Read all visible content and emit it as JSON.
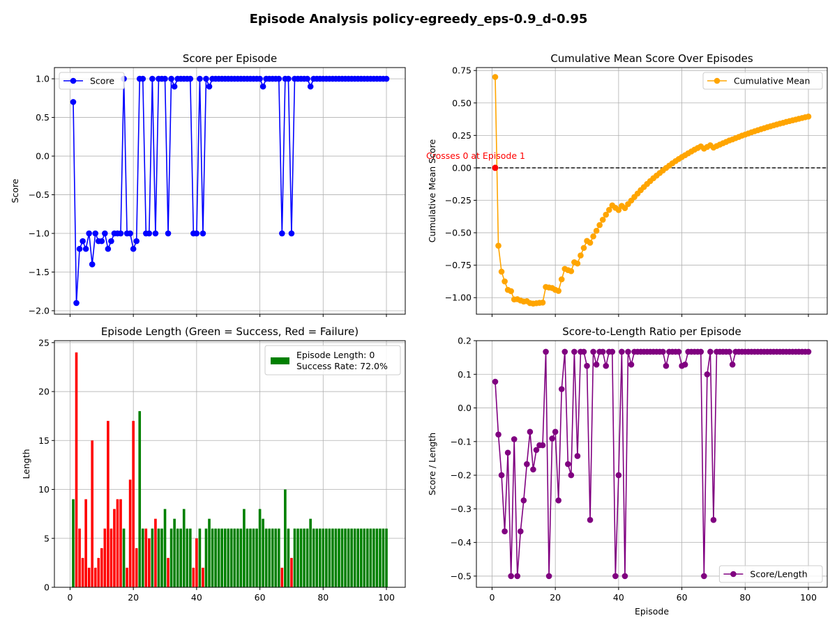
{
  "figure": {
    "title": "Episode Analysis policy-egreedy_eps-0.9_d-0.95"
  },
  "chart_data": [
    {
      "id": "score",
      "type": "line",
      "title": "Score per Episode",
      "xlabel": "",
      "ylabel": "Score",
      "xlim": [
        -4.95,
        105.95
      ],
      "ylim": [
        -2.045,
        1.145
      ],
      "xticks": [
        0,
        20,
        40,
        60,
        80,
        100
      ],
      "xticklabels": [
        "",
        "",
        "",
        "",
        "",
        ""
      ],
      "yticks": [
        -2.0,
        -1.5,
        -1.0,
        -0.5,
        0.0,
        0.5,
        1.0
      ],
      "yticklabels": [
        "−2.0",
        "−1.5",
        "−1.0",
        "−0.5",
        "0.0",
        "0.5",
        "1.0"
      ],
      "grid": true,
      "legend": {
        "position": "upper-left"
      },
      "series": [
        {
          "name": "Score",
          "color": "#0000ff",
          "marker": "circle",
          "x": [
            1,
            2,
            3,
            4,
            5,
            6,
            7,
            8,
            9,
            10,
            11,
            12,
            13,
            14,
            15,
            16,
            17,
            18,
            19,
            20,
            21,
            22,
            23,
            24,
            25,
            26,
            27,
            28,
            29,
            30,
            31,
            32,
            33,
            34,
            35,
            36,
            37,
            38,
            39,
            40,
            41,
            42,
            43,
            44,
            45,
            46,
            47,
            48,
            49,
            50,
            51,
            52,
            53,
            54,
            55,
            56,
            57,
            58,
            59,
            60,
            61,
            62,
            63,
            64,
            65,
            66,
            67,
            68,
            69,
            70,
            71,
            72,
            73,
            74,
            75,
            76,
            77,
            78,
            79,
            80,
            81,
            82,
            83,
            84,
            85,
            86,
            87,
            88,
            89,
            90,
            91,
            92,
            93,
            94,
            95,
            96,
            97,
            98,
            99,
            100
          ],
          "y": [
            0.7,
            -1.9,
            -1.2,
            -1.1,
            -1.2,
            -1.0,
            -1.4,
            -1.0,
            -1.1,
            -1.1,
            -1.0,
            -1.2,
            -1.1,
            -1.0,
            -1.0,
            -1.0,
            1.0,
            -1.0,
            -1.0,
            -1.2,
            -1.1,
            1.0,
            1.0,
            -1.0,
            -1.0,
            1.0,
            -1.0,
            1.0,
            1.0,
            1.0,
            -1.0,
            1.0,
            0.9,
            1.0,
            1.0,
            1.0,
            1.0,
            1.0,
            -1.0,
            -1.0,
            1.0,
            -1.0,
            1.0,
            0.9,
            1.0,
            1.0,
            1.0,
            1.0,
            1.0,
            1.0,
            1.0,
            1.0,
            1.0,
            1.0,
            1.0,
            1.0,
            1.0,
            1.0,
            1.0,
            1.0,
            0.9,
            1.0,
            1.0,
            1.0,
            1.0,
            1.0,
            -1.0,
            1.0,
            1.0,
            -1.0,
            1.0,
            1.0,
            1.0,
            1.0,
            1.0,
            0.9,
            1.0,
            1.0,
            1.0,
            1.0,
            1.0,
            1.0,
            1.0,
            1.0,
            1.0,
            1.0,
            1.0,
            1.0,
            1.0,
            1.0,
            1.0,
            1.0,
            1.0,
            1.0,
            1.0,
            1.0,
            1.0,
            1.0,
            1.0,
            1.0
          ]
        }
      ]
    },
    {
      "id": "cummean",
      "type": "line",
      "title": "Cumulative Mean Score Over Episodes",
      "xlabel": "",
      "ylabel": "Cumulative Mean Score",
      "xlim": [
        -4.95,
        105.95
      ],
      "ylim": [
        -1.1275,
        0.7725
      ],
      "xticks": [
        0,
        20,
        40,
        60,
        80,
        100
      ],
      "xticklabels": [
        "",
        "",
        "",
        "",
        "",
        ""
      ],
      "yticks": [
        -1.0,
        -0.75,
        -0.5,
        -0.25,
        0.0,
        0.25,
        0.5,
        0.75
      ],
      "yticklabels": [
        "−1.00",
        "−0.75",
        "−0.50",
        "−0.25",
        "0.00",
        "0.25",
        "0.50",
        "0.75"
      ],
      "grid": true,
      "legend": {
        "position": "upper-right"
      },
      "hline": {
        "y": 0,
        "color": "#000000",
        "style": "dashed"
      },
      "annotation": {
        "text": "Crosses 0 at Episode 1",
        "x": 1,
        "y": 0,
        "color": "#ff0000"
      },
      "series": [
        {
          "name": "Cumulative Mean",
          "color": "#ffa500",
          "marker": "circle",
          "x": [
            1,
            2,
            3,
            4,
            5,
            6,
            7,
            8,
            9,
            10,
            11,
            12,
            13,
            14,
            15,
            16,
            17,
            18,
            19,
            20,
            21,
            22,
            23,
            24,
            25,
            26,
            27,
            28,
            29,
            30,
            31,
            32,
            33,
            34,
            35,
            36,
            37,
            38,
            39,
            40,
            41,
            42,
            43,
            44,
            45,
            46,
            47,
            48,
            49,
            50,
            51,
            52,
            53,
            54,
            55,
            56,
            57,
            58,
            59,
            60,
            61,
            62,
            63,
            64,
            65,
            66,
            67,
            68,
            69,
            70,
            71,
            72,
            73,
            74,
            75,
            76,
            77,
            78,
            79,
            80,
            81,
            82,
            83,
            84,
            85,
            86,
            87,
            88,
            89,
            90,
            91,
            92,
            93,
            94,
            95,
            96,
            97,
            98,
            99,
            100
          ],
          "y": [
            0.7,
            -0.6,
            -0.8,
            -0.875,
            -0.94,
            -0.95,
            -1.014,
            -1.012,
            -1.022,
            -1.03,
            -1.027,
            -1.042,
            -1.046,
            -1.043,
            -1.04,
            -1.038,
            -0.918,
            -0.922,
            -0.926,
            -0.94,
            -0.948,
            -0.859,
            -0.778,
            -0.788,
            -0.796,
            -0.727,
            -0.737,
            -0.675,
            -0.617,
            -0.563,
            -0.577,
            -0.528,
            -0.485,
            -0.441,
            -0.4,
            -0.361,
            -0.324,
            -0.289,
            -0.308,
            -0.325,
            -0.293,
            -0.31,
            -0.279,
            -0.252,
            -0.224,
            -0.198,
            -0.172,
            -0.148,
            -0.124,
            -0.102,
            -0.08,
            -0.06,
            -0.04,
            -0.02,
            -0.001,
            0.017,
            0.035,
            0.052,
            0.068,
            0.083,
            0.097,
            0.112,
            0.126,
            0.14,
            0.153,
            0.165,
            0.148,
            0.161,
            0.174,
            0.156,
            0.168,
            0.179,
            0.19,
            0.2,
            0.211,
            0.219,
            0.229,
            0.238,
            0.248,
            0.256,
            0.265,
            0.274,
            0.282,
            0.29,
            0.298,
            0.305,
            0.313,
            0.32,
            0.327,
            0.334,
            0.341,
            0.347,
            0.354,
            0.36,
            0.366,
            0.372,
            0.378,
            0.384,
            0.39,
            0.395
          ]
        }
      ],
      "points": [
        {
          "x": 1,
          "y": 0,
          "color": "#ff0000"
        }
      ]
    },
    {
      "id": "length",
      "type": "bar",
      "title": "Episode Length (Green = Success, Red = Failure)",
      "xlabel": "",
      "ylabel": "Length",
      "xlim": [
        -4.95,
        105.95
      ],
      "ylim": [
        0,
        25.2
      ],
      "xticks": [
        0,
        20,
        40,
        60,
        80,
        100
      ],
      "xticklabels": [
        "0",
        "20",
        "40",
        "60",
        "80",
        "100"
      ],
      "yticks": [
        0,
        5,
        10,
        15,
        20,
        25
      ],
      "yticklabels": [
        "0",
        "5",
        "10",
        "15",
        "20",
        "25"
      ],
      "grid": true,
      "legend": {
        "position": "upper-right",
        "entries": [
          "Episode Length: 0",
          "Success Rate: 72.0%"
        ],
        "color": "#008000"
      },
      "success_color": "#008000",
      "failure_color": "#ff0000",
      "x": [
        1,
        2,
        3,
        4,
        5,
        6,
        7,
        8,
        9,
        10,
        11,
        12,
        13,
        14,
        15,
        16,
        17,
        18,
        19,
        20,
        21,
        22,
        23,
        24,
        25,
        26,
        27,
        28,
        29,
        30,
        31,
        32,
        33,
        34,
        35,
        36,
        37,
        38,
        39,
        40,
        41,
        42,
        43,
        44,
        45,
        46,
        47,
        48,
        49,
        50,
        51,
        52,
        53,
        54,
        55,
        56,
        57,
        58,
        59,
        60,
        61,
        62,
        63,
        64,
        65,
        66,
        67,
        68,
        69,
        70,
        71,
        72,
        73,
        74,
        75,
        76,
        77,
        78,
        79,
        80,
        81,
        82,
        83,
        84,
        85,
        86,
        87,
        88,
        89,
        90,
        91,
        92,
        93,
        94,
        95,
        96,
        97,
        98,
        99,
        100
      ],
      "values": [
        9,
        24,
        6,
        3,
        9,
        2,
        15,
        2,
        3,
        4,
        6,
        17,
        6,
        8,
        9,
        9,
        6,
        2,
        11,
        17,
        4,
        18,
        6,
        6,
        5,
        6,
        7,
        6,
        6,
        8,
        3,
        6,
        7,
        6,
        6,
        8,
        6,
        6,
        2,
        5,
        6,
        2,
        6,
        7,
        6,
        6,
        6,
        6,
        6,
        6,
        6,
        6,
        6,
        6,
        8,
        6,
        6,
        6,
        6,
        8,
        7,
        6,
        6,
        6,
        6,
        6,
        2,
        10,
        6,
        3,
        6,
        6,
        6,
        6,
        6,
        7,
        6,
        6,
        6,
        6,
        6,
        6,
        6,
        6,
        6,
        6,
        6,
        6,
        6,
        6,
        6,
        6,
        6,
        6,
        6,
        6,
        6,
        6,
        6,
        6
      ],
      "success": [
        1,
        0,
        0,
        0,
        0,
        0,
        0,
        0,
        0,
        0,
        0,
        0,
        0,
        0,
        0,
        0,
        1,
        0,
        0,
        0,
        0,
        1,
        1,
        0,
        0,
        1,
        0,
        1,
        1,
        1,
        0,
        1,
        1,
        1,
        1,
        1,
        1,
        1,
        0,
        0,
        1,
        0,
        1,
        1,
        1,
        1,
        1,
        1,
        1,
        1,
        1,
        1,
        1,
        1,
        1,
        1,
        1,
        1,
        1,
        1,
        1,
        1,
        1,
        1,
        1,
        1,
        0,
        1,
        1,
        0,
        1,
        1,
        1,
        1,
        1,
        1,
        1,
        1,
        1,
        1,
        1,
        1,
        1,
        1,
        1,
        1,
        1,
        1,
        1,
        1,
        1,
        1,
        1,
        1,
        1,
        1,
        1,
        1,
        1,
        1
      ]
    },
    {
      "id": "ratio",
      "type": "line",
      "title": "Score-to-Length Ratio per Episode",
      "xlabel": "Episode",
      "ylabel": "Score / Length",
      "xlim": [
        -4.95,
        105.95
      ],
      "ylim": [
        -0.5333,
        0.2
      ],
      "xticks": [
        0,
        20,
        40,
        60,
        80,
        100
      ],
      "xticklabels": [
        "0",
        "20",
        "40",
        "60",
        "80",
        "100"
      ],
      "yticks": [
        -0.5,
        -0.4,
        -0.3,
        -0.2,
        -0.1,
        0.0,
        0.1,
        0.2
      ],
      "yticklabels": [
        "−0.5",
        "−0.4",
        "−0.3",
        "−0.2",
        "−0.1",
        "0.0",
        "0.1",
        "0.2"
      ],
      "grid": true,
      "legend": {
        "position": "lower-right"
      },
      "series": [
        {
          "name": "Score/Length",
          "color": "#800080",
          "marker": "circle",
          "x": [
            1,
            2,
            3,
            4,
            5,
            6,
            7,
            8,
            9,
            10,
            11,
            12,
            13,
            14,
            15,
            16,
            17,
            18,
            19,
            20,
            21,
            22,
            23,
            24,
            25,
            26,
            27,
            28,
            29,
            30,
            31,
            32,
            33,
            34,
            35,
            36,
            37,
            38,
            39,
            40,
            41,
            42,
            43,
            44,
            45,
            46,
            47,
            48,
            49,
            50,
            51,
            52,
            53,
            54,
            55,
            56,
            57,
            58,
            59,
            60,
            61,
            62,
            63,
            64,
            65,
            66,
            67,
            68,
            69,
            70,
            71,
            72,
            73,
            74,
            75,
            76,
            77,
            78,
            79,
            80,
            81,
            82,
            83,
            84,
            85,
            86,
            87,
            88,
            89,
            90,
            91,
            92,
            93,
            94,
            95,
            96,
            97,
            98,
            99,
            100
          ],
          "y": [
            0.078,
            -0.079,
            -0.2,
            -0.367,
            -0.133,
            -0.5,
            -0.093,
            -0.5,
            -0.367,
            -0.275,
            -0.167,
            -0.071,
            -0.183,
            -0.125,
            -0.111,
            -0.111,
            0.167,
            -0.5,
            -0.091,
            -0.071,
            -0.275,
            0.056,
            0.167,
            -0.167,
            -0.2,
            0.167,
            -0.143,
            0.167,
            0.167,
            0.125,
            -0.333,
            0.167,
            0.129,
            0.167,
            0.167,
            0.125,
            0.167,
            0.167,
            -0.5,
            -0.2,
            0.167,
            -0.5,
            0.167,
            0.129,
            0.167,
            0.167,
            0.167,
            0.167,
            0.167,
            0.167,
            0.167,
            0.167,
            0.167,
            0.167,
            0.125,
            0.167,
            0.167,
            0.167,
            0.167,
            0.125,
            0.129,
            0.167,
            0.167,
            0.167,
            0.167,
            0.167,
            -0.5,
            0.1,
            0.167,
            -0.333,
            0.167,
            0.167,
            0.167,
            0.167,
            0.167,
            0.129,
            0.167,
            0.167,
            0.167,
            0.167,
            0.167,
            0.167,
            0.167,
            0.167,
            0.167,
            0.167,
            0.167,
            0.167,
            0.167,
            0.167,
            0.167,
            0.167,
            0.167,
            0.167,
            0.167,
            0.167,
            0.167,
            0.167,
            0.167,
            0.167
          ]
        }
      ]
    }
  ]
}
